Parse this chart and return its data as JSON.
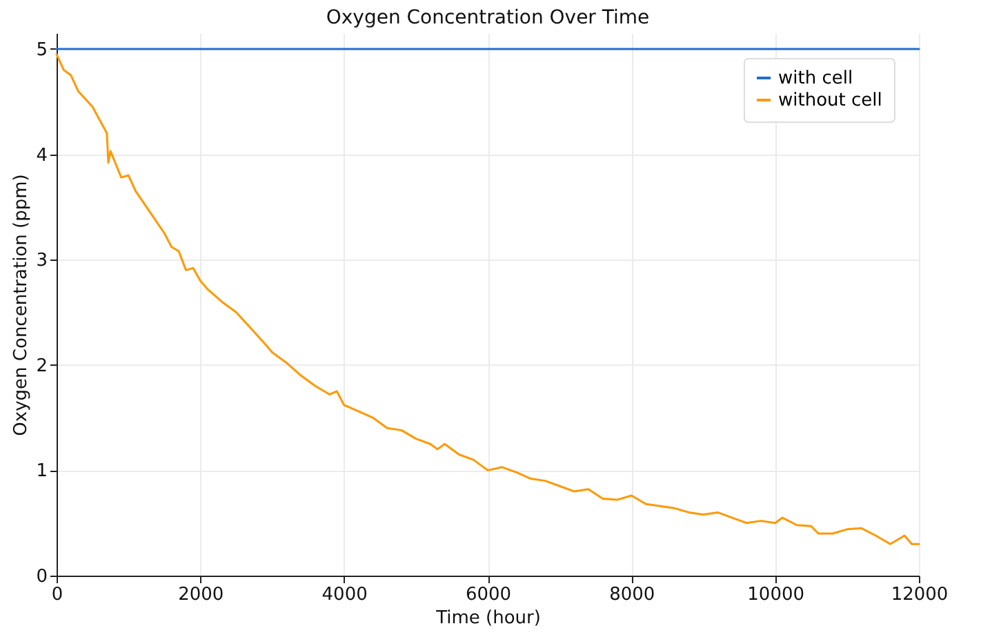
{
  "chart_data": {
    "type": "line",
    "title": "Oxygen Concentration Over Time",
    "xlabel": "Time (hour)",
    "ylabel": "Oxygen Concentration (ppm)",
    "xlim": [
      0,
      12000
    ],
    "ylim": [
      0,
      5.15
    ],
    "xticks": [
      0,
      2000,
      4000,
      6000,
      8000,
      10000,
      12000
    ],
    "yticks": [
      0,
      1,
      2,
      3,
      4,
      5
    ],
    "grid": true,
    "legend": "top right",
    "series": [
      {
        "name": "with cell",
        "color": "#1f6fd0",
        "x": [
          0,
          12000
        ],
        "values": [
          5,
          5
        ]
      },
      {
        "name": "without cell",
        "color": "#ff9900",
        "x": [
          0,
          100,
          200,
          300,
          500,
          700,
          720,
          750,
          900,
          1000,
          1100,
          1300,
          1500,
          1600,
          1700,
          1800,
          1900,
          2000,
          2100,
          2300,
          2500,
          2700,
          2900,
          3000,
          3200,
          3400,
          3600,
          3800,
          3900,
          4000,
          4200,
          4400,
          4600,
          4800,
          5000,
          5200,
          5300,
          5400,
          5600,
          5800,
          6000,
          6200,
          6400,
          6600,
          6800,
          7000,
          7200,
          7400,
          7600,
          7800,
          8000,
          8200,
          8400,
          8600,
          8800,
          9000,
          9200,
          9400,
          9600,
          9800,
          10000,
          10100,
          10300,
          10500,
          10600,
          10800,
          11000,
          11200,
          11400,
          11600,
          11800,
          11900,
          12000
        ],
        "values": [
          4.95,
          4.8,
          4.75,
          4.6,
          4.45,
          4.2,
          3.92,
          4.03,
          3.78,
          3.8,
          3.65,
          3.45,
          3.25,
          3.12,
          3.08,
          2.9,
          2.92,
          2.8,
          2.72,
          2.6,
          2.5,
          2.35,
          2.2,
          2.12,
          2.02,
          1.9,
          1.8,
          1.72,
          1.75,
          1.62,
          1.56,
          1.5,
          1.4,
          1.38,
          1.3,
          1.25,
          1.2,
          1.25,
          1.15,
          1.1,
          1.0,
          1.03,
          0.98,
          0.92,
          0.9,
          0.85,
          0.8,
          0.82,
          0.73,
          0.72,
          0.76,
          0.68,
          0.66,
          0.64,
          0.6,
          0.58,
          0.6,
          0.55,
          0.5,
          0.52,
          0.5,
          0.55,
          0.48,
          0.47,
          0.4,
          0.4,
          0.44,
          0.45,
          0.38,
          0.3,
          0.38,
          0.3,
          0.3
        ]
      }
    ]
  }
}
